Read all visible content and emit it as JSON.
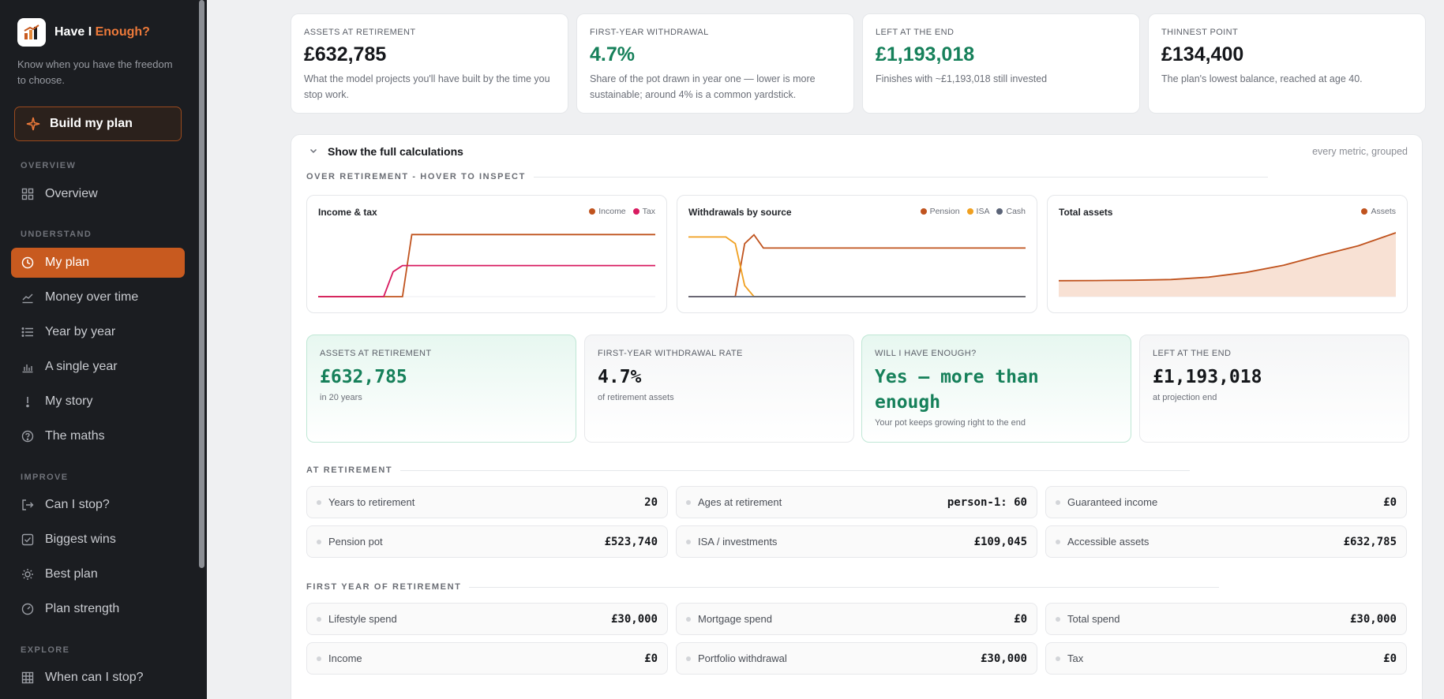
{
  "app": {
    "name_prefix": "Have I",
    "name_accent": "Enough?",
    "tagline": "Know when you have the freedom to choose.",
    "build_label": "Build my plan"
  },
  "sidebar": {
    "sections": {
      "overview": "OVERVIEW",
      "understand": "UNDERSTAND",
      "improve": "IMPROVE",
      "explore": "EXPLORE"
    },
    "items": [
      {
        "label": "Overview",
        "icon": "grid-icon"
      },
      {
        "label": "My plan",
        "icon": "clock-icon",
        "active": true
      },
      {
        "label": "Money over time",
        "icon": "trend-icon"
      },
      {
        "label": "Year by year",
        "icon": "list-icon"
      },
      {
        "label": "A single year",
        "icon": "bar-chart-icon"
      },
      {
        "label": "My story",
        "icon": "story-icon"
      },
      {
        "label": "The maths",
        "icon": "help-icon"
      },
      {
        "label": "Can I stop?",
        "icon": "exit-icon"
      },
      {
        "label": "Biggest wins",
        "icon": "check-square-icon"
      },
      {
        "label": "Best plan",
        "icon": "sun-icon"
      },
      {
        "label": "Plan strength",
        "icon": "gauge-icon"
      },
      {
        "label": "When can I stop?",
        "icon": "table-icon"
      }
    ]
  },
  "summary": [
    {
      "label": "Assets at retirement",
      "value": "£632,785",
      "desc": "What the model projects you'll have built by the time you stop work."
    },
    {
      "label": "First-year withdrawal",
      "value": "4.7%",
      "desc": "Share of the pot drawn in year one — lower is more sustainable; around 4% is a common yardstick."
    },
    {
      "label": "Left at the end",
      "value": "£1,193,018",
      "desc": "Finishes with ~£1,193,018 still invested"
    },
    {
      "label": "Thinnest point",
      "value": "£134,400",
      "desc": "The plan's lowest balance, reached at age 40."
    }
  ],
  "panel": {
    "toggle_label": "Show the full calculations",
    "right_note": "every metric, grouped",
    "section_charts": "OVER RETIREMENT - HOVER TO INSPECT",
    "section_retirement": "AT RETIREMENT",
    "section_first_year": "FIRST YEAR OF RETIREMENT"
  },
  "colors": {
    "accent": "#c85a1f",
    "green": "#16805a",
    "income": "#c0531e",
    "tax": "#d81b60",
    "pension": "#c0531e",
    "isa": "#f0a020",
    "cash": "#5b6478",
    "assets": "#c0531e"
  },
  "chart_data": [
    {
      "type": "line",
      "title": "Income & tax",
      "x": [
        0,
        4,
        6,
        7,
        8,
        9,
        10,
        12,
        16,
        20,
        24,
        28,
        32,
        36
      ],
      "series": [
        {
          "name": "Income",
          "values": [
            0,
            0,
            0,
            0,
            0,
            0,
            30000,
            30000,
            30000,
            30000,
            30000,
            30000,
            30000,
            30000
          ]
        },
        {
          "name": "Tax",
          "values": [
            0,
            0,
            0,
            0,
            12000,
            15000,
            15000,
            15000,
            15000,
            15000,
            15000,
            15000,
            15000,
            15000
          ]
        }
      ],
      "ylim": [
        0,
        32000
      ]
    },
    {
      "type": "line",
      "title": "Withdrawals by source",
      "x": [
        0,
        4,
        5,
        6,
        7,
        8,
        9,
        12,
        16,
        20,
        24,
        28,
        32,
        36
      ],
      "series": [
        {
          "name": "Pension",
          "values": [
            0,
            0,
            0,
            24000,
            28000,
            22000,
            22000,
            22000,
            22000,
            22000,
            22000,
            22000,
            22000,
            22000
          ]
        },
        {
          "name": "ISA",
          "values": [
            27000,
            27000,
            24000,
            5000,
            0,
            0,
            0,
            0,
            0,
            0,
            0,
            0,
            0,
            0
          ]
        },
        {
          "name": "Cash",
          "values": [
            0,
            0,
            0,
            0,
            0,
            0,
            0,
            0,
            0,
            0,
            0,
            0,
            0,
            0
          ]
        }
      ],
      "ylim": [
        0,
        30000
      ]
    },
    {
      "type": "area",
      "title": "Total assets",
      "x": [
        0,
        4,
        8,
        12,
        16,
        20,
        24,
        28,
        32,
        36
      ],
      "series": [
        {
          "name": "Assets",
          "values": [
            134400,
            136000,
            139000,
            145000,
            165000,
            205000,
            265000,
            350000,
            430000,
            540000
          ]
        }
      ],
      "ylim": [
        0,
        560000
      ]
    }
  ],
  "kpis": [
    {
      "label": "Assets at retirement",
      "value": "£632,785",
      "sub": "in 20 years",
      "green": true
    },
    {
      "label": "First-year withdrawal rate",
      "value": "4.7%",
      "sub": "of retirement assets",
      "green": false
    },
    {
      "label": "Will I have enough?",
      "value": "Yes — more than enough",
      "sub": "Your pot keeps growing right to the end",
      "green": true
    },
    {
      "label": "Left at the end",
      "value": "£1,193,018",
      "sub": "at projection end",
      "green": false
    }
  ],
  "retirement_metrics": [
    {
      "label": "Years to retirement",
      "value": "20"
    },
    {
      "label": "Ages at retirement",
      "value": "person-1: 60"
    },
    {
      "label": "Guaranteed income",
      "value": "£0"
    },
    {
      "label": "Pension pot",
      "value": "£523,740"
    },
    {
      "label": "ISA / investments",
      "value": "£109,045"
    },
    {
      "label": "Accessible assets",
      "value": "£632,785"
    }
  ],
  "first_year_metrics": [
    {
      "label": "Lifestyle spend",
      "value": "£30,000"
    },
    {
      "label": "Mortgage spend",
      "value": "£0"
    },
    {
      "label": "Total spend",
      "value": "£30,000"
    },
    {
      "label": "Income",
      "value": "£0"
    },
    {
      "label": "Portfolio withdrawal",
      "value": "£30,000"
    },
    {
      "label": "Tax",
      "value": "£0"
    }
  ]
}
